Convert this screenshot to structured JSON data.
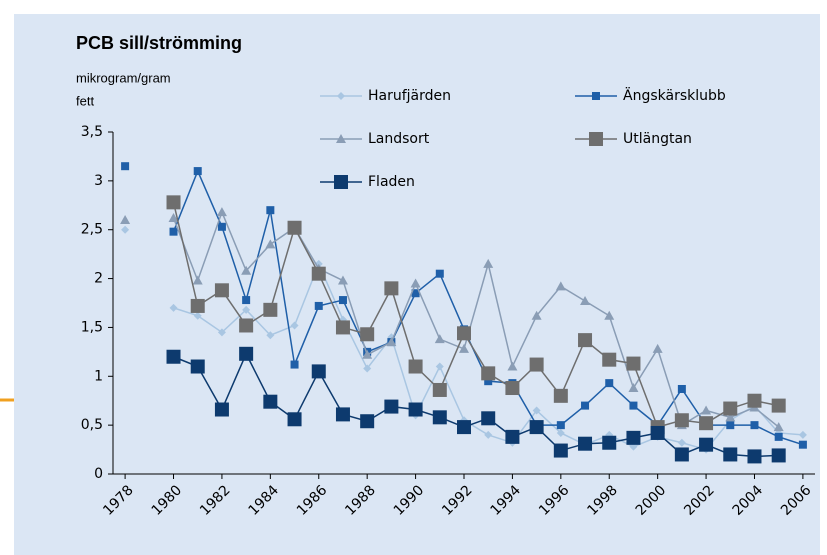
{
  "chart_data": {
    "type": "line",
    "title": "PCB sill/strömming",
    "ylabel": [
      "mikrogram/gram",
      "fett"
    ],
    "x": [
      1978,
      1979,
      1980,
      1981,
      1982,
      1983,
      1984,
      1985,
      1986,
      1987,
      1988,
      1989,
      1990,
      1991,
      1992,
      1993,
      1994,
      1995,
      1996,
      1997,
      1998,
      1999,
      2000,
      2001,
      2002,
      2003,
      2004,
      2005,
      2006
    ],
    "xlim": [
      1977.5,
      2006.5
    ],
    "xticks": [
      1978,
      1980,
      1982,
      1984,
      1986,
      1988,
      1990,
      1992,
      1994,
      1996,
      1998,
      2000,
      2002,
      2004,
      2006
    ],
    "ylim": [
      0,
      3.5
    ],
    "yticks": [
      0,
      {
        "value": 0.5,
        "label": "0,5"
      },
      1,
      {
        "value": 1.5,
        "label": "1,5"
      },
      2,
      {
        "value": 2.5,
        "label": "2,5"
      },
      3,
      {
        "value": 3.5,
        "label": "3,5"
      }
    ],
    "series": [
      {
        "name": "Harufjärden",
        "color": "#a9c6e2",
        "marker": "diamond",
        "values": [
          2.5,
          null,
          1.7,
          1.62,
          1.45,
          1.68,
          1.42,
          1.52,
          2.15,
          1.58,
          1.08,
          1.4,
          0.6,
          1.1,
          0.55,
          0.4,
          0.32,
          0.65,
          0.42,
          0.3,
          0.4,
          0.28,
          0.38,
          0.32,
          0.25,
          0.55,
          0.7,
          0.42,
          0.4
        ]
      },
      {
        "name": "Ängskärsklubb",
        "color": "#1f5fa8",
        "marker": "square",
        "values": [
          3.15,
          null,
          2.48,
          3.1,
          2.53,
          1.78,
          2.7,
          1.12,
          1.72,
          1.78,
          1.25,
          1.35,
          1.85,
          2.05,
          1.48,
          0.95,
          0.93,
          0.5,
          0.5,
          0.7,
          0.93,
          0.7,
          0.5,
          0.87,
          0.5,
          0.5,
          0.5,
          0.38,
          0.3
        ]
      },
      {
        "name": "Landsort",
        "color": "#8a9db5",
        "marker": "triangle",
        "values": [
          2.6,
          null,
          2.62,
          1.98,
          2.68,
          2.08,
          2.35,
          2.52,
          2.1,
          1.98,
          1.22,
          1.35,
          1.95,
          1.38,
          1.28,
          2.15,
          1.1,
          1.62,
          1.92,
          1.77,
          1.62,
          0.88,
          1.28,
          0.5,
          0.65,
          0.58,
          0.68,
          0.48,
          null
        ]
      },
      {
        "name": "Utlängtan",
        "color": "#6e6e6e",
        "marker": "big-square",
        "values": [
          null,
          null,
          2.78,
          1.72,
          1.88,
          1.52,
          1.68,
          2.52,
          2.05,
          1.5,
          1.43,
          1.9,
          1.1,
          0.86,
          1.44,
          1.03,
          0.88,
          1.12,
          0.8,
          1.37,
          1.17,
          1.13,
          0.48,
          0.55,
          0.52,
          0.67,
          0.75,
          0.7,
          null
        ]
      },
      {
        "name": "Fladen",
        "color": "#0d3a6e",
        "marker": "big-square",
        "values": [
          null,
          null,
          1.2,
          1.1,
          0.66,
          1.23,
          0.74,
          0.56,
          1.05,
          0.61,
          0.54,
          0.69,
          0.66,
          0.58,
          0.48,
          0.57,
          0.38,
          0.48,
          0.24,
          0.31,
          0.32,
          0.37,
          0.42,
          0.2,
          0.3,
          0.2,
          0.18,
          0.19,
          null
        ]
      }
    ]
  }
}
